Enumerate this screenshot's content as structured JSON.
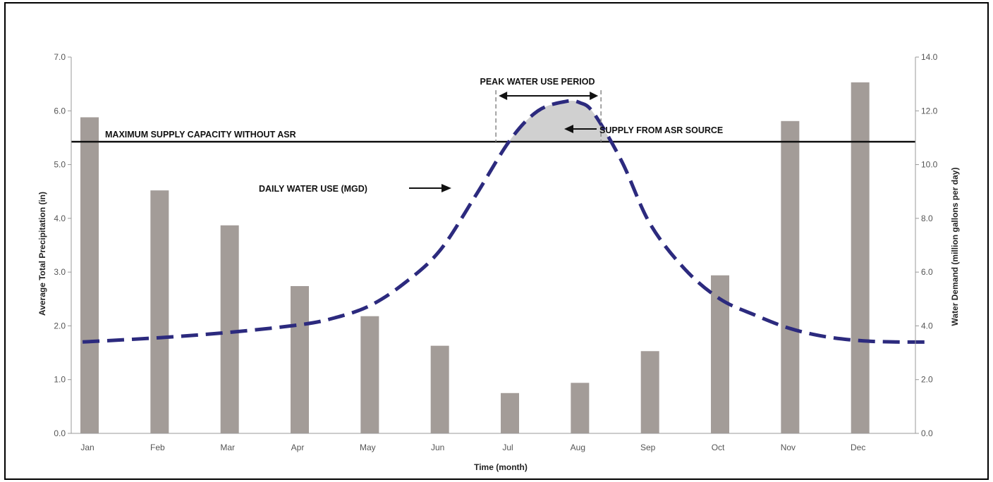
{
  "chart_data": {
    "type": "bar",
    "title": "",
    "xlabel": "Time (month)",
    "ylabel_left": "Average Total Precipitation (in)",
    "ylabel_right": "Water Demand (million gallons per day)",
    "categories": [
      "Jan",
      "Feb",
      "Mar",
      "Apr",
      "May",
      "Jun",
      "Jul",
      "Aug",
      "Sep",
      "Oct",
      "Nov",
      "Dec"
    ],
    "ylim_left": [
      0,
      7
    ],
    "ylim_right": [
      0,
      14
    ],
    "yticks_left": [
      "0.0",
      "1.0",
      "2.0",
      "3.0",
      "4.0",
      "5.0",
      "6.0",
      "7.0"
    ],
    "yticks_right": [
      "0.0",
      "2.0",
      "4.0",
      "6.0",
      "8.0",
      "10.0",
      "12.0",
      "14.0"
    ],
    "bar_color": "#a39c98",
    "series": [
      {
        "type": "bar",
        "axis": "left",
        "values": [
          5.88,
          4.52,
          3.87,
          2.74,
          2.18,
          1.63,
          0.75,
          0.94,
          1.53,
          2.94,
          5.81,
          6.53
        ]
      },
      {
        "type": "line",
        "axis": "right",
        "style": "dashed",
        "color": "#2c2a7e",
        "x": [
          -0.1,
          1,
          2,
          3,
          3.5,
          4,
          4.5,
          5,
          5.5,
          6,
          6.4,
          6.8,
          7,
          7.2,
          7.6,
          8,
          8.5,
          9,
          9.5,
          10,
          10.5,
          11,
          11.5,
          12
        ],
        "values": [
          3.4,
          3.56,
          3.76,
          4.04,
          4.3,
          4.75,
          5.6,
          6.8,
          8.8,
          10.9,
          12.0,
          12.35,
          12.3,
          11.9,
          10.1,
          7.8,
          6.1,
          5.0,
          4.4,
          3.9,
          3.6,
          3.45,
          3.4,
          3.4
        ]
      }
    ],
    "reference_line": {
      "axis": "right",
      "value": 10.85
    },
    "annotations": {
      "max_supply": "MAXIMUM SUPPLY CAPACITY WITHOUT ASR",
      "peak_period": "PEAK WATER USE PERIOD",
      "asr_supply": "SUPPLY FROM ASR SOURCE",
      "daily_use": "DAILY WATER USE (MGD)"
    },
    "peak_period_range": [
      5.8,
      7.3
    ],
    "shade_color": "#d0d0d0"
  }
}
